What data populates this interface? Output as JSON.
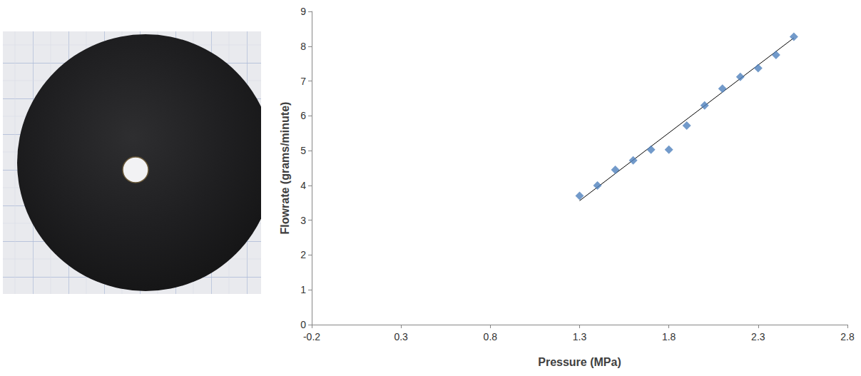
{
  "chart_data": {
    "type": "scatter",
    "x": [
      1.3,
      1.4,
      1.5,
      1.6,
      1.7,
      1.8,
      1.9,
      2.0,
      2.1,
      2.2,
      2.3,
      2.4,
      2.5
    ],
    "values": [
      3.7,
      4.0,
      4.45,
      4.72,
      5.03,
      5.03,
      5.72,
      6.3,
      6.78,
      7.12,
      7.37,
      7.75,
      8.27
    ],
    "color": "#4f81bd",
    "marker": "diamond",
    "xlabel": "Pressure (MPa)",
    "ylabel": "Flowrate (grams/minute)",
    "xlim": [
      -0.2,
      2.8
    ],
    "xticks": [
      -0.2,
      0.3,
      0.8,
      1.3,
      1.8,
      2.3,
      2.8
    ],
    "ylim": [
      0,
      9
    ],
    "yticks": [
      0,
      1,
      2,
      3,
      4,
      5,
      6,
      7,
      8,
      9
    ],
    "grid": false,
    "trend_line": {
      "x": [
        1.3,
        2.5
      ],
      "values": [
        3.56,
        8.24
      ],
      "color": "#000000"
    }
  }
}
